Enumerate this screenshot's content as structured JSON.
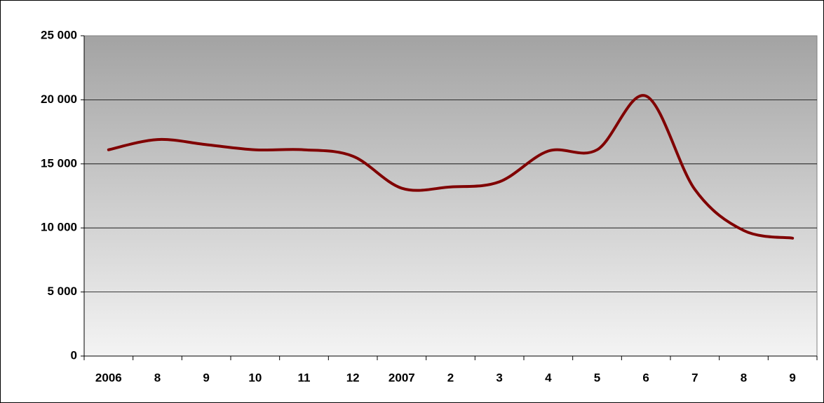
{
  "chart_data": {
    "type": "line",
    "categories": [
      "2006",
      "8",
      "9",
      "10",
      "11",
      "12",
      "2007",
      "2",
      "3",
      "4",
      "5",
      "6",
      "7",
      "8",
      "9"
    ],
    "series": [
      {
        "color": "#800000",
        "values": [
          16100,
          16900,
          16500,
          16100,
          16100,
          15600,
          13100,
          13200,
          13600,
          16000,
          16100,
          20300,
          13000,
          9800,
          9200
        ]
      }
    ],
    "ylim": [
      0,
      25000
    ],
    "yticks": [
      0,
      {
        "value": 5000,
        "label": "5 000"
      },
      {
        "value": 10000,
        "label": "10 000"
      },
      {
        "value": 15000,
        "label": "15 000"
      },
      {
        "value": 20000,
        "label": "20 000"
      },
      {
        "value": 25000,
        "label": "25 000"
      }
    ],
    "grid": true
  }
}
